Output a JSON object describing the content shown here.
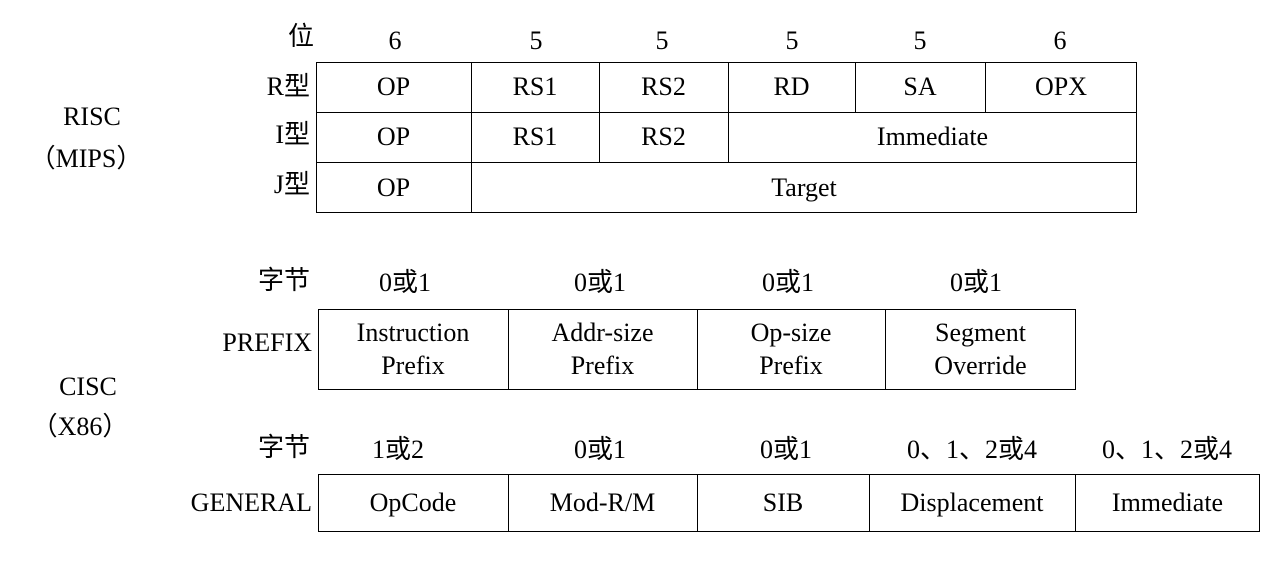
{
  "risc": {
    "group_label_1": "RISC",
    "group_label_2": "（MIPS）",
    "bits_label": "位",
    "bit_widths": [
      "6",
      "5",
      "5",
      "5",
      "5",
      "6"
    ],
    "formats": [
      {
        "label": "R型",
        "fields": [
          "OP",
          "RS1",
          "RS2",
          "RD",
          "SA",
          "OPX"
        ]
      },
      {
        "label": "I型",
        "fields": [
          "OP",
          "RS1",
          "RS2",
          "Immediate"
        ]
      },
      {
        "label": "J型",
        "fields": [
          "OP",
          "Target"
        ]
      }
    ]
  },
  "cisc": {
    "group_label_1": "CISC",
    "group_label_2": "（X86）",
    "prefix": {
      "bytes_label": "字节",
      "byte_counts": [
        "0或1",
        "0或1",
        "0或1",
        "0或1"
      ],
      "row_label": "PREFIX",
      "fields": [
        {
          "line1": "Instruction",
          "line2": "Prefix"
        },
        {
          "line1": "Addr-size",
          "line2": "Prefix"
        },
        {
          "line1": "Op-size",
          "line2": "Prefix"
        },
        {
          "line1": "Segment",
          "line2": "Override"
        }
      ]
    },
    "general": {
      "bytes_label": "字节",
      "byte_counts": [
        "1或2",
        "0或1",
        "0或1",
        "0、1、2或4",
        "0、1、2或4"
      ],
      "row_label": "GENERAL",
      "fields": [
        "OpCode",
        "Mod-R/M",
        "SIB",
        "Displacement",
        "Immediate"
      ]
    }
  }
}
